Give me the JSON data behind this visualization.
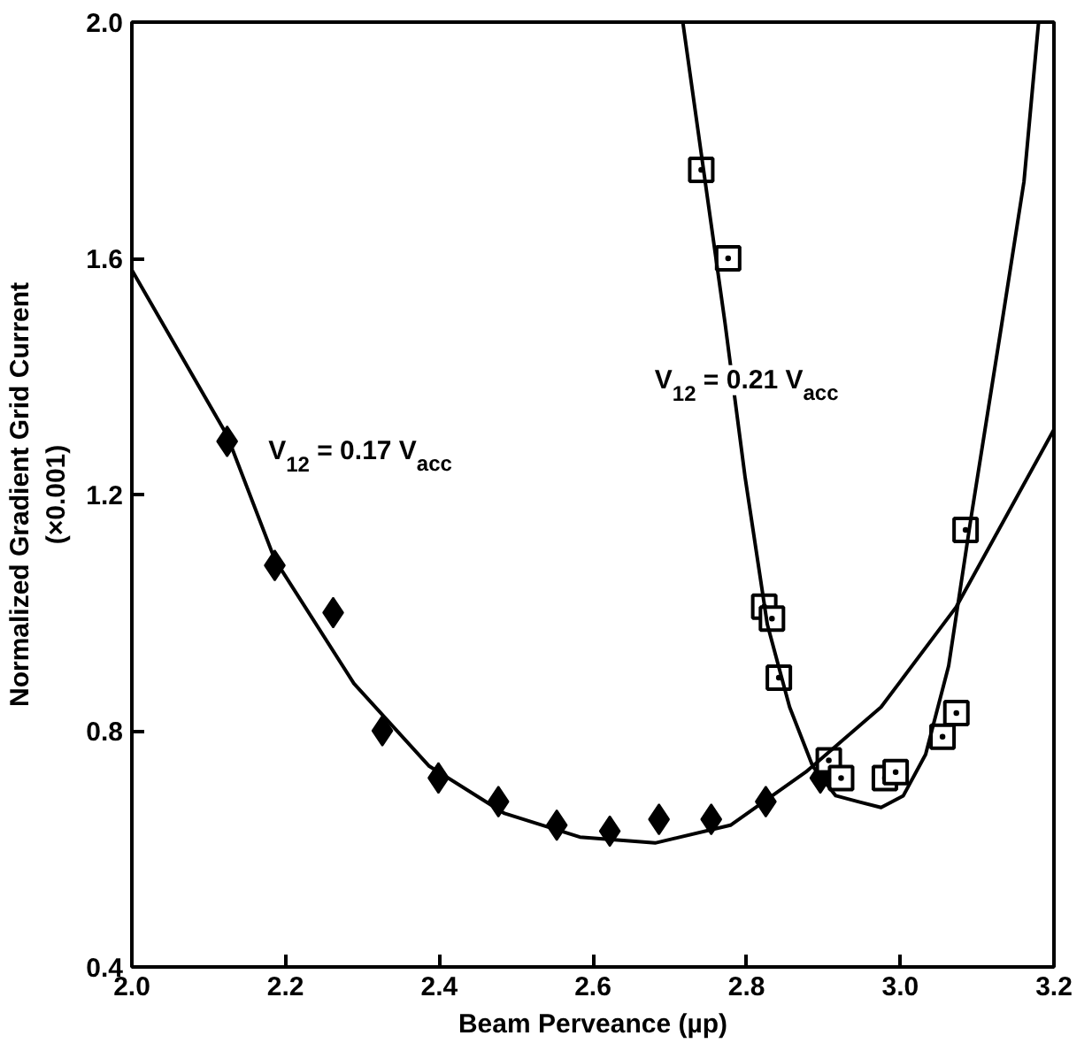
{
  "chart_data": {
    "type": "scatter",
    "xlabel": "Beam Perveance (µp)",
    "ylabel": "Normalized Gradient Grid Current\n(×0.001)",
    "xlim": [
      2.0,
      3.2
    ],
    "ylim": [
      0.4,
      2.0
    ],
    "xticks": [
      {
        "value": 2.0,
        "label": "2.0"
      },
      2.2,
      2.4,
      2.6,
      2.8,
      {
        "value": 3.0,
        "label": "3.0"
      },
      3.2
    ],
    "yticks": [
      0.4,
      0.8,
      1.2,
      1.6,
      {
        "value": 2.0,
        "label": "2.0"
      }
    ],
    "grid": false,
    "series": [
      {
        "marker": "diamond",
        "color": "#000000",
        "x": [
          2.124,
          2.186,
          2.262,
          2.326,
          2.399,
          2.477,
          2.553,
          2.622,
          2.686,
          2.754,
          2.825,
          2.896
        ],
        "values": [
          1.29,
          1.08,
          1.0,
          0.8,
          0.72,
          0.68,
          0.64,
          0.63,
          0.65,
          0.65,
          0.68,
          0.72
        ]
      },
      {
        "marker": "square",
        "color": "#000000",
        "x": [
          2.741,
          2.776,
          2.823,
          2.833,
          2.842,
          2.907,
          2.923,
          2.98,
          2.994,
          3.055,
          3.073,
          3.085
        ],
        "values": [
          1.75,
          1.6,
          1.01,
          0.99,
          0.89,
          0.75,
          0.72,
          0.72,
          0.73,
          0.79,
          0.83,
          1.14
        ]
      },
      {
        "type": "line",
        "marker": "none",
        "line_style": "solid",
        "color": "#000000",
        "x": [
          2.0,
          2.124,
          2.186,
          2.289,
          2.387,
          2.485,
          2.583,
          2.681,
          2.779,
          2.877,
          2.975,
          3.073,
          3.2
        ],
        "values": [
          1.58,
          1.3,
          1.09,
          0.88,
          0.74,
          0.66,
          0.62,
          0.61,
          0.64,
          0.73,
          0.84,
          1.01,
          1.31
        ]
      },
      {
        "type": "line",
        "marker": "none",
        "line_style": "solid",
        "color": "#000000",
        "x": [
          2.717,
          2.772,
          2.798,
          2.827,
          2.856,
          2.886,
          2.916,
          2.945,
          2.975,
          3.004,
          3.033,
          3.063,
          3.092,
          3.131,
          3.161,
          3.18
        ],
        "values": [
          2.0,
          1.49,
          1.23,
          0.98,
          0.84,
          0.74,
          0.69,
          0.68,
          0.67,
          0.69,
          0.76,
          0.91,
          1.16,
          1.48,
          1.73,
          2.0
        ]
      }
    ],
    "annotations": [
      "V$_{12}$ = 0.17 V$_{acc}$",
      "V$_{12}$ = 0.21 V$_{acc}$"
    ]
  }
}
